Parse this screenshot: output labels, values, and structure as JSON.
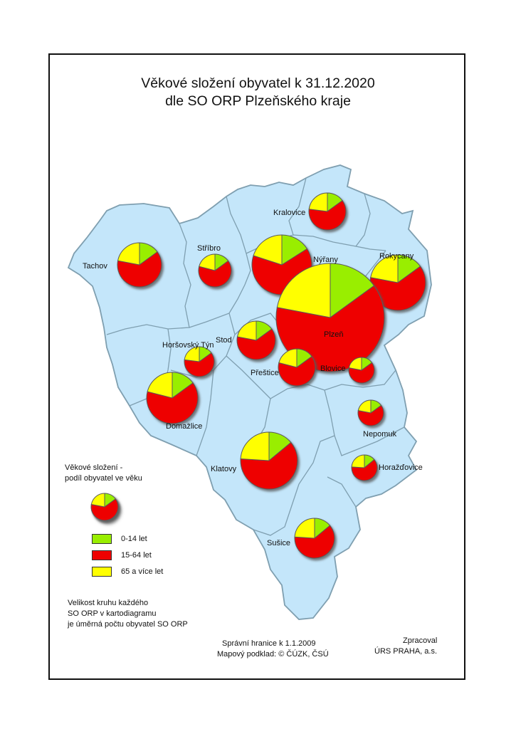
{
  "title_line1": "Věkové složení obyvatel k 31.12.2020",
  "title_line2": "dle SO ORP Plzeňského kraje",
  "colors": {
    "region_fill": "#c4e6fa",
    "region_border": "#7f9fb0",
    "age_0_14": "#99ee00",
    "age_15_64": "#ee0000",
    "age_65_plus": "#ffff00"
  },
  "regions": [
    {
      "name": "Tachov"
    },
    {
      "name": "Stříbro"
    },
    {
      "name": "Kralovice"
    },
    {
      "name": "Nýřany"
    },
    {
      "name": "Rokycany"
    },
    {
      "name": "Plzeň"
    },
    {
      "name": "Stod"
    },
    {
      "name": "Horšovský Týn"
    },
    {
      "name": "Přeštice"
    },
    {
      "name": "Blovice"
    },
    {
      "name": "Domažlice"
    },
    {
      "name": "Nepomuk"
    },
    {
      "name": "Klatovy"
    },
    {
      "name": "Horažďovice"
    },
    {
      "name": "Sušice"
    }
  ],
  "legend": {
    "heading_line1": "Věkové složení -",
    "heading_line2": "podíl obyvatel ve věku",
    "items": [
      {
        "label": "0-14 let"
      },
      {
        "label": "15-64 let"
      },
      {
        "label": "65 a více let"
      }
    ]
  },
  "note": {
    "line1": "Velikost kruhu každého",
    "line2": "SO ORP v kartodiagramu",
    "line3": "je úměrná počtu obyvatel SO ORP"
  },
  "footer": {
    "boundaries": "Správní hranice k 1.1.2009",
    "basemap": "Mapový podklad: © ČÚZK, ČSÚ",
    "processed_label": "Zpracoval",
    "processed_by": "ÚRS PRAHA, a.s."
  }
}
